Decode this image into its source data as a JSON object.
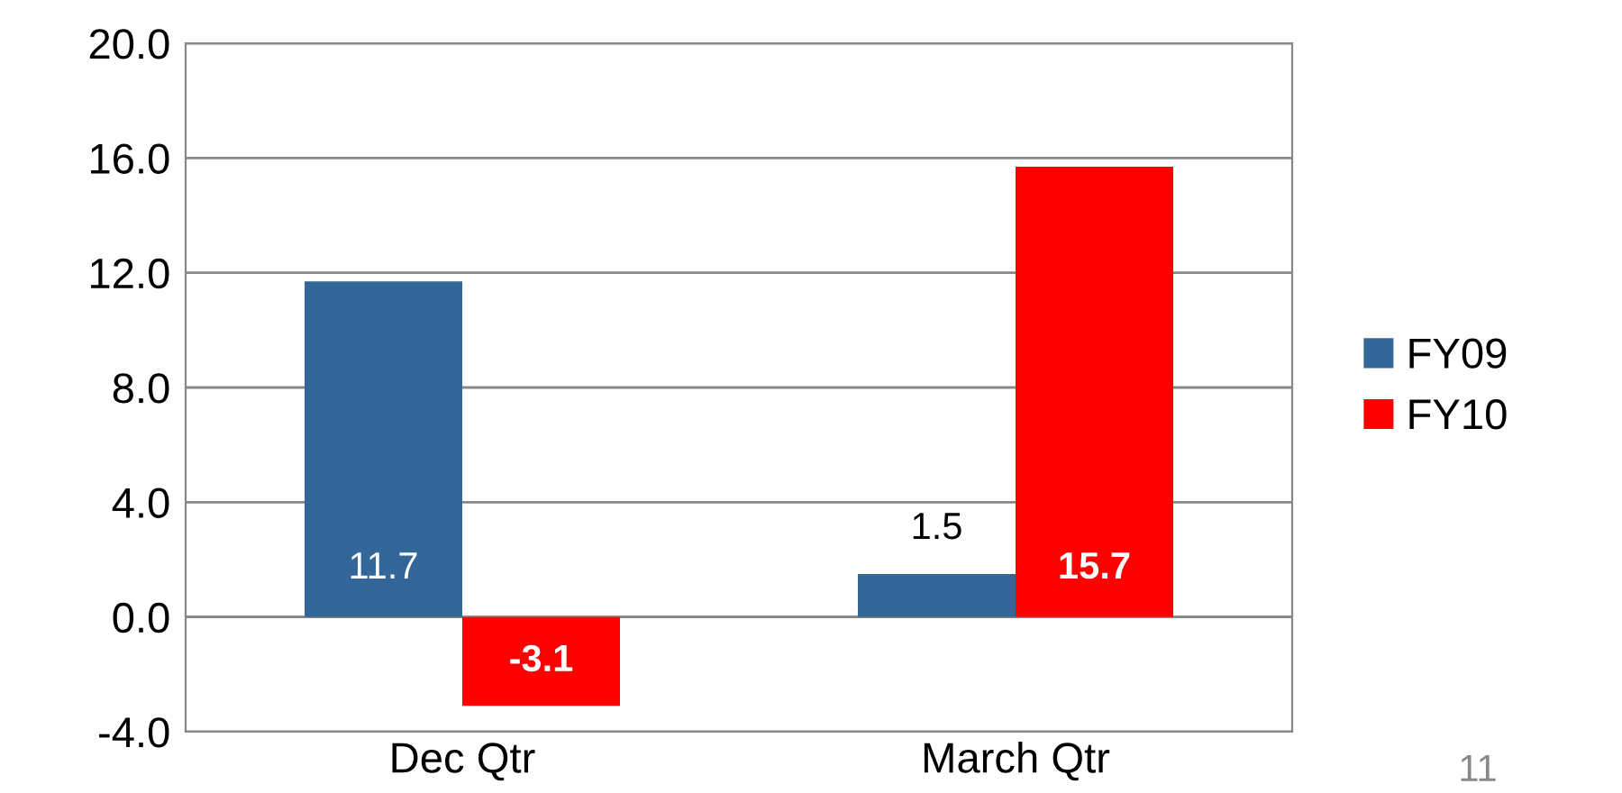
{
  "chart_data": {
    "type": "bar",
    "categories": [
      "Dec Qtr",
      "March Qtr"
    ],
    "series": [
      {
        "name": "FY09",
        "color": "#336699",
        "values": [
          11.7,
          1.5
        ],
        "value_labels": [
          "11.7",
          "1.5"
        ]
      },
      {
        "name": "FY10",
        "color": "#ff0000",
        "values": [
          -3.1,
          15.7
        ],
        "value_labels": [
          "-3.1",
          "15.7"
        ]
      }
    ],
    "ylim": [
      -4,
      20
    ],
    "yticks": [
      {
        "value": -4,
        "label": "-4.0"
      },
      {
        "value": 0,
        "label": "0.0"
      },
      {
        "value": 4,
        "label": "4.0"
      },
      {
        "value": 8,
        "label": "8.0"
      },
      {
        "value": 12,
        "label": "12.0"
      },
      {
        "value": 16,
        "label": "16.0"
      },
      {
        "value": 20,
        "label": "20.0"
      }
    ],
    "grid": "y",
    "legend": "right",
    "annotations": [
      "11"
    ]
  }
}
